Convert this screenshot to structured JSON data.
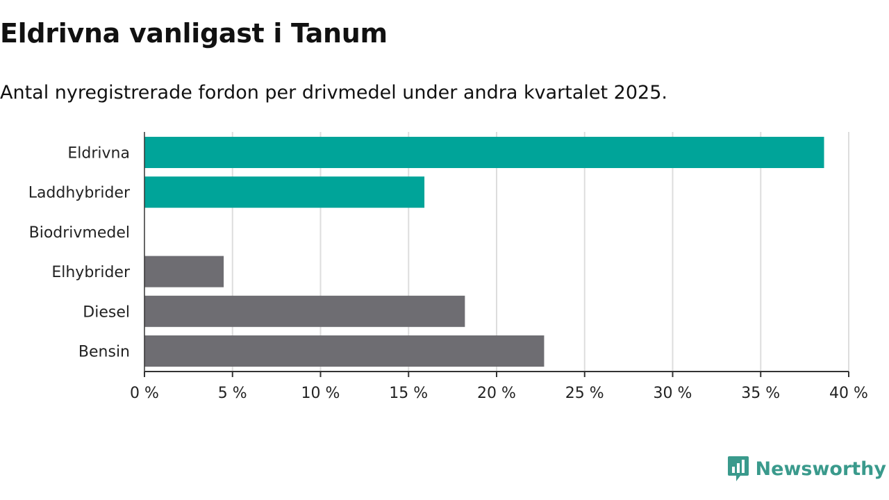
{
  "header": {
    "title": "Eldrivna vanligast i Tanum",
    "subtitle": "Antal nyregistrerade fordon per drivmedel under andra kvartalet 2025."
  },
  "chart_data": {
    "type": "bar",
    "orientation": "horizontal",
    "categories": [
      "Eldrivna",
      "Laddhybrider",
      "Biodrivmedel",
      "Elhybrider",
      "Diesel",
      "Bensin"
    ],
    "values": [
      38.6,
      15.9,
      0,
      4.5,
      18.2,
      22.7
    ],
    "colors": [
      "#00a499",
      "#00a499",
      "#00a499",
      "#6e6d72",
      "#6e6d72",
      "#6e6d72"
    ],
    "xlim": [
      0,
      40
    ],
    "xticks": [
      0,
      5,
      10,
      15,
      20,
      25,
      30,
      35,
      40
    ],
    "tick_labels": [
      "0 %",
      "5 %",
      "10 %",
      "15 %",
      "20 %",
      "25 %",
      "30 %",
      "35 %",
      "40 %"
    ],
    "grid": true
  },
  "branding": {
    "name": "Newsworthy",
    "color": "#3a9a8c",
    "icon": "newsworthy-logo-icon"
  }
}
